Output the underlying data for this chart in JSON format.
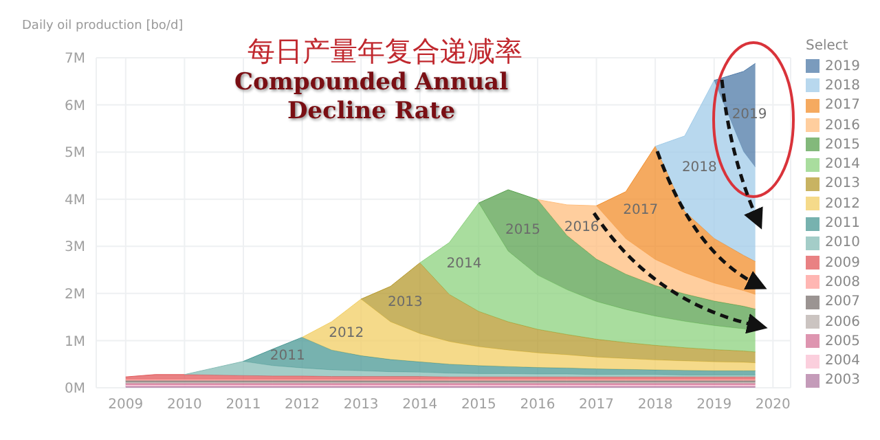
{
  "chart_data": {
    "type": "area",
    "title": "每日产量年复合递减率",
    "subtitle": "Compounded Annual Decline Rate",
    "ylabel": "Daily oil production [bo/d]",
    "legend_title": "Select",
    "stacked": true,
    "grid": true,
    "legend": "right",
    "x": [
      2009,
      2009.5,
      2010,
      2010.5,
      2011,
      2011.5,
      2012,
      2012.5,
      2013,
      2013.5,
      2014,
      2014.5,
      2015,
      2015.5,
      2016,
      2016.5,
      2017,
      2017.5,
      2018,
      2018.5,
      2019,
      2019.5,
      2019.7
    ],
    "xlim": [
      2008.5,
      2020.3
    ],
    "xticks": [
      2009,
      2010,
      2011,
      2012,
      2013,
      2014,
      2015,
      2016,
      2017,
      2018,
      2019,
      2020
    ],
    "ylim": [
      0,
      7
    ],
    "yticks": [
      {
        "value": 0,
        "label": "0M"
      },
      {
        "value": 1,
        "label": "1M"
      },
      {
        "value": 2,
        "label": "2M"
      },
      {
        "value": 3,
        "label": "3M"
      },
      {
        "value": 4,
        "label": "4M"
      },
      {
        "value": 5,
        "label": "5M"
      },
      {
        "value": 6,
        "label": "6M"
      },
      {
        "value": 7,
        "label": "7M"
      }
    ],
    "series": [
      {
        "name": "2003",
        "color": "#b07aa1",
        "values": [
          0.03,
          0.03,
          0.03,
          0.03,
          0.03,
          0.03,
          0.03,
          0.03,
          0.03,
          0.03,
          0.03,
          0.03,
          0.03,
          0.03,
          0.03,
          0.03,
          0.03,
          0.03,
          0.03,
          0.03,
          0.03,
          0.03,
          0.03
        ]
      },
      {
        "name": "2004",
        "color": "#fabfd2",
        "values": [
          0.03,
          0.03,
          0.03,
          0.03,
          0.03,
          0.03,
          0.03,
          0.03,
          0.03,
          0.03,
          0.03,
          0.03,
          0.03,
          0.03,
          0.03,
          0.03,
          0.03,
          0.03,
          0.03,
          0.03,
          0.03,
          0.03,
          0.03
        ]
      },
      {
        "name": "2005",
        "color": "#d37295",
        "values": [
          0.03,
          0.03,
          0.03,
          0.03,
          0.03,
          0.03,
          0.03,
          0.03,
          0.03,
          0.03,
          0.03,
          0.03,
          0.03,
          0.03,
          0.03,
          0.03,
          0.03,
          0.03,
          0.03,
          0.03,
          0.03,
          0.03,
          0.03
        ]
      },
      {
        "name": "2006",
        "color": "#bab0ac",
        "values": [
          0.03,
          0.03,
          0.03,
          0.03,
          0.03,
          0.03,
          0.03,
          0.03,
          0.03,
          0.03,
          0.03,
          0.03,
          0.03,
          0.03,
          0.03,
          0.03,
          0.03,
          0.03,
          0.03,
          0.03,
          0.03,
          0.03,
          0.03
        ]
      },
      {
        "name": "2007",
        "color": "#79706e",
        "values": [
          0.03,
          0.03,
          0.03,
          0.03,
          0.03,
          0.03,
          0.03,
          0.03,
          0.03,
          0.03,
          0.03,
          0.03,
          0.03,
          0.03,
          0.03,
          0.03,
          0.03,
          0.03,
          0.03,
          0.03,
          0.03,
          0.03,
          0.03
        ]
      },
      {
        "name": "2008",
        "color": "#ff9d9a",
        "values": [
          0.03,
          0.03,
          0.03,
          0.03,
          0.03,
          0.03,
          0.03,
          0.03,
          0.03,
          0.03,
          0.03,
          0.03,
          0.03,
          0.03,
          0.03,
          0.03,
          0.03,
          0.03,
          0.03,
          0.03,
          0.03,
          0.03,
          0.03
        ]
      },
      {
        "name": "2009",
        "color": "#e15759",
        "values": [
          0.05,
          0.1,
          0.1,
          0.09,
          0.08,
          0.07,
          0.07,
          0.06,
          0.06,
          0.06,
          0.06,
          0.05,
          0.05,
          0.05,
          0.05,
          0.05,
          0.05,
          0.05,
          0.05,
          0.05,
          0.05,
          0.05,
          0.05
        ]
      },
      {
        "name": "2010",
        "color": "#86bcb6",
        "values": [
          null,
          null,
          0,
          0.15,
          0.3,
          0.22,
          0.17,
          0.14,
          0.12,
          0.1,
          0.09,
          0.08,
          0.07,
          0.07,
          0.06,
          0.06,
          0.05,
          0.05,
          0.05,
          0.04,
          0.04,
          0.04,
          0.04
        ]
      },
      {
        "name": "2011",
        "color": "#499894",
        "values": [
          null,
          null,
          null,
          null,
          0,
          0.35,
          0.65,
          0.42,
          0.32,
          0.26,
          0.22,
          0.19,
          0.17,
          0.15,
          0.14,
          0.13,
          0.12,
          0.11,
          0.1,
          0.1,
          0.09,
          0.09,
          0.09
        ]
      },
      {
        "name": "2012",
        "color": "#f1ce63",
        "values": [
          null,
          null,
          null,
          null,
          null,
          null,
          0,
          0.6,
          1.2,
          0.8,
          0.6,
          0.48,
          0.4,
          0.35,
          0.31,
          0.28,
          0.25,
          0.23,
          0.21,
          0.2,
          0.19,
          0.18,
          0.17
        ]
      },
      {
        "name": "2013",
        "color": "#b6992d",
        "values": [
          null,
          null,
          null,
          null,
          null,
          null,
          null,
          null,
          0,
          0.75,
          1.5,
          1.0,
          0.75,
          0.6,
          0.5,
          0.43,
          0.38,
          0.34,
          0.31,
          0.28,
          0.26,
          0.24,
          0.23
        ]
      },
      {
        "name": "2014",
        "color": "#8cd17d",
        "values": [
          null,
          null,
          null,
          null,
          null,
          null,
          null,
          null,
          null,
          null,
          0,
          1.1,
          2.3,
          1.5,
          1.15,
          0.95,
          0.8,
          0.7,
          0.62,
          0.56,
          0.51,
          0.47,
          0.45
        ]
      },
      {
        "name": "2015",
        "color": "#59a14f",
        "values": [
          null,
          null,
          null,
          null,
          null,
          null,
          null,
          null,
          null,
          null,
          null,
          null,
          0,
          1.3,
          1.6,
          1.15,
          0.9,
          0.75,
          0.65,
          0.58,
          0.52,
          0.48,
          0.46
        ]
      },
      {
        "name": "2016",
        "color": "#ffbe7d",
        "values": [
          null,
          null,
          null,
          null,
          null,
          null,
          null,
          null,
          null,
          null,
          null,
          null,
          null,
          null,
          0,
          0.65,
          1.13,
          0.75,
          0.55,
          0.45,
          0.38,
          0.33,
          0.31
        ]
      },
      {
        "name": "2017",
        "color": "#f28e2b",
        "values": [
          null,
          null,
          null,
          null,
          null,
          null,
          null,
          null,
          null,
          null,
          null,
          null,
          null,
          null,
          null,
          null,
          0,
          1.0,
          2.4,
          1.3,
          0.95,
          0.75,
          0.7
        ]
      },
      {
        "name": "2018",
        "color": "#a0cbe8",
        "values": [
          null,
          null,
          null,
          null,
          null,
          null,
          null,
          null,
          null,
          null,
          null,
          null,
          null,
          null,
          null,
          null,
          null,
          null,
          0,
          1.6,
          3.35,
          2.2,
          2.0
        ]
      },
      {
        "name": "2019",
        "color": "#4e79a7",
        "values": [
          null,
          null,
          null,
          null,
          null,
          null,
          null,
          null,
          null,
          null,
          null,
          null,
          null,
          null,
          null,
          null,
          null,
          null,
          null,
          null,
          0,
          1.7,
          2.2
        ]
      }
    ]
  }
}
